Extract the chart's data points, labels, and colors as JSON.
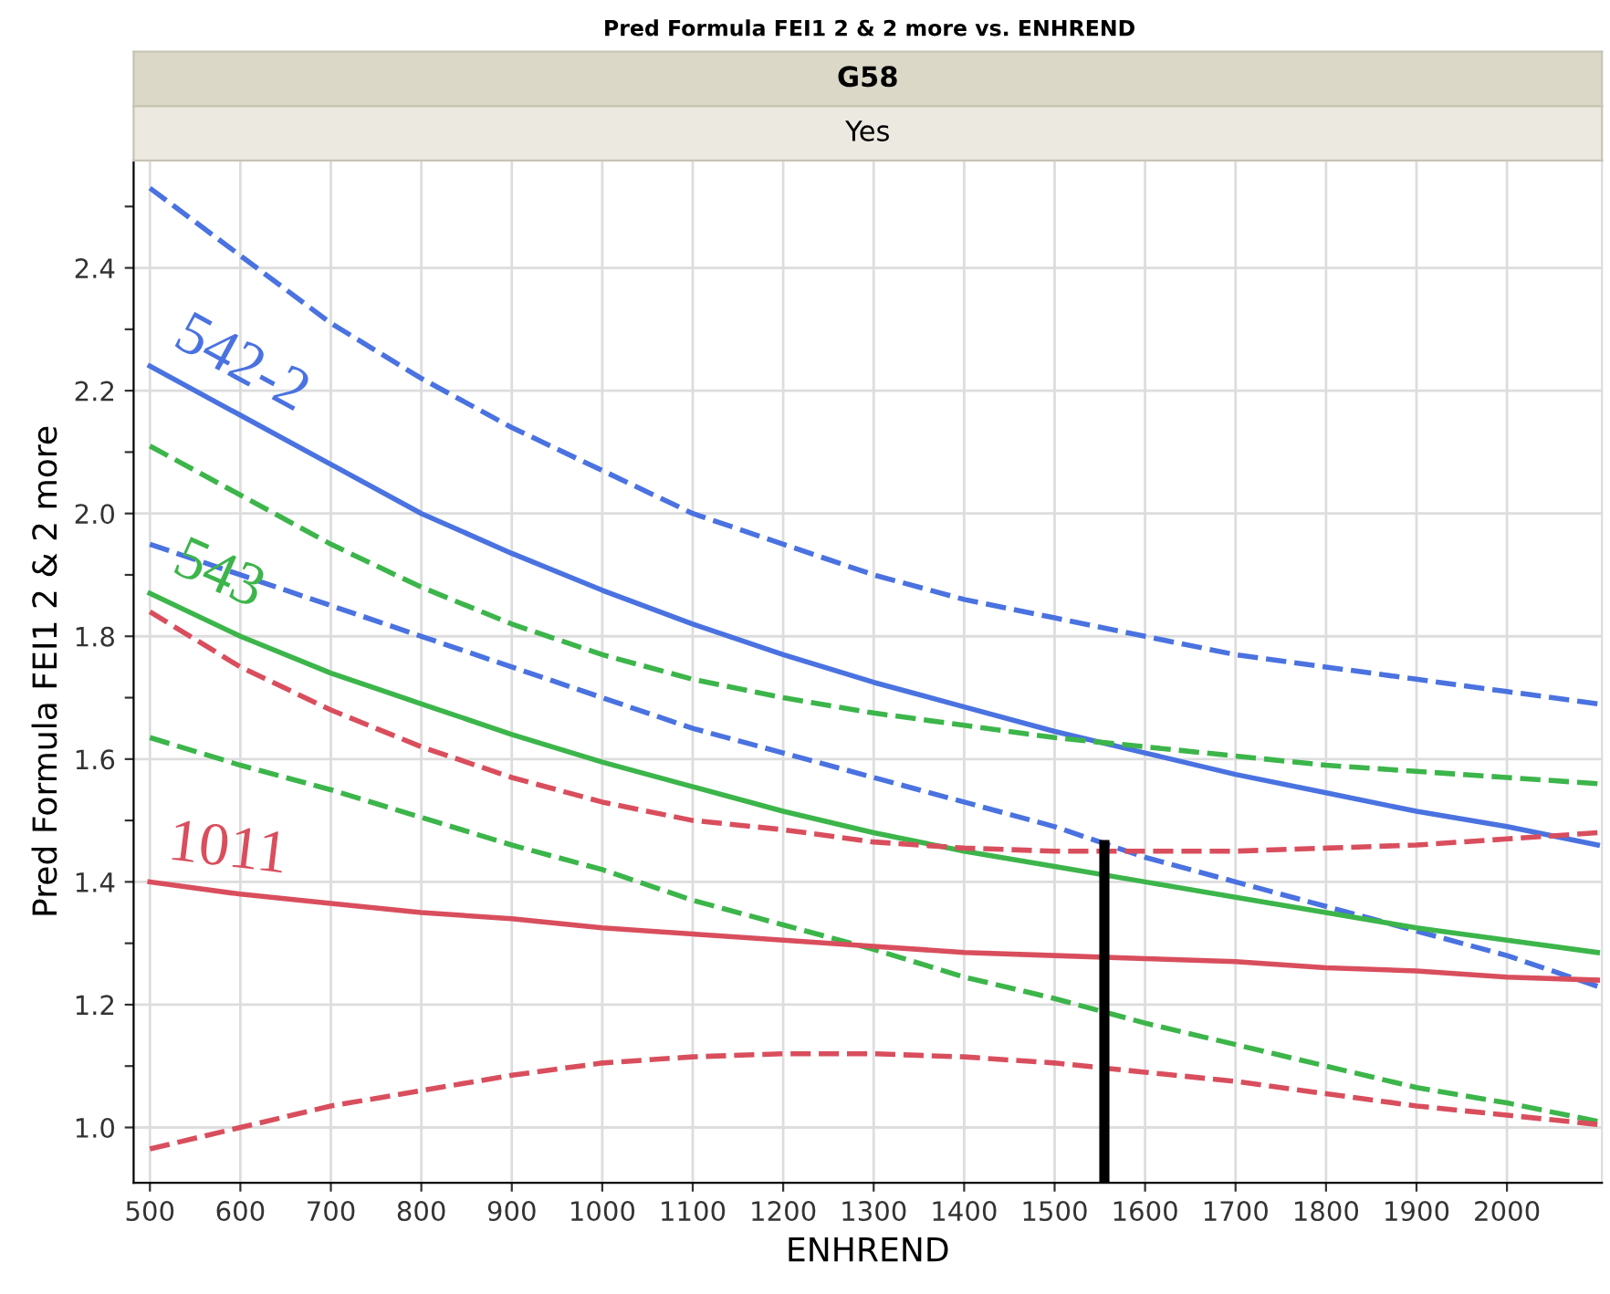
{
  "chart_data": {
    "type": "line",
    "title": "Pred Formula FEI1 2 & 2 more vs. ENHREND",
    "subtitle": "G58",
    "annotations": [
      "Yes"
    ],
    "xlabel": "ENHREND",
    "ylabel": "Pred Formula FEI1 2 & 2 more",
    "x": [
      500,
      600,
      700,
      800,
      900,
      1000,
      1100,
      1200,
      1300,
      1400,
      1500,
      1600,
      1700,
      1800,
      1900,
      2000,
      2100
    ],
    "xlim": [
      482,
      2105
    ],
    "xticks": [
      500,
      600,
      700,
      800,
      900,
      1000,
      1100,
      1200,
      1300,
      1400,
      1500,
      1600,
      1700,
      1800,
      1900,
      2000
    ],
    "ylim": [
      0.91,
      2.575
    ],
    "yticks": [
      {
        "value": 1.0,
        "label": "1.0"
      },
      {
        "value": 1.1,
        "label": null
      },
      {
        "value": 1.2,
        "label": "1.2"
      },
      {
        "value": 1.3,
        "label": null
      },
      {
        "value": 1.4,
        "label": "1.4"
      },
      {
        "value": 1.5,
        "label": null
      },
      {
        "value": 1.6,
        "label": "1.6"
      },
      {
        "value": 1.7,
        "label": null
      },
      {
        "value": 1.8,
        "label": "1.8"
      },
      {
        "value": 1.9,
        "label": null
      },
      {
        "value": 2.0,
        "label": "2.0"
      },
      {
        "value": 2.1,
        "label": null
      },
      {
        "value": 2.2,
        "label": "2.2"
      },
      {
        "value": 2.3,
        "label": null
      },
      {
        "value": 2.4,
        "label": "2.4"
      },
      {
        "value": 2.5,
        "label": null
      }
    ],
    "grid": true,
    "legend": false,
    "series": [
      {
        "name": "542-2",
        "color": "#4a72e0",
        "line_style": "solid",
        "values": [
          2.24,
          2.16,
          2.08,
          2.0,
          1.935,
          1.875,
          1.82,
          1.77,
          1.725,
          1.685,
          1.645,
          1.61,
          1.575,
          1.545,
          1.515,
          1.49,
          1.46
        ]
      },
      {
        "color": "#4a72e0",
        "line_style": "dashed",
        "values": [
          2.53,
          2.42,
          2.31,
          2.22,
          2.14,
          2.07,
          2.0,
          1.95,
          1.9,
          1.86,
          1.83,
          1.8,
          1.77,
          1.75,
          1.73,
          1.71,
          1.69
        ]
      },
      {
        "color": "#4a72e0",
        "line_style": "dashed",
        "values": [
          1.95,
          1.9,
          1.85,
          1.8,
          1.75,
          1.7,
          1.65,
          1.61,
          1.57,
          1.53,
          1.49,
          1.44,
          1.4,
          1.36,
          1.32,
          1.28,
          1.23
        ]
      },
      {
        "name": "543",
        "color": "#3cb54a",
        "line_style": "solid",
        "values": [
          1.87,
          1.8,
          1.74,
          1.69,
          1.64,
          1.595,
          1.555,
          1.515,
          1.48,
          1.45,
          1.425,
          1.4,
          1.375,
          1.35,
          1.325,
          1.305,
          1.285
        ]
      },
      {
        "color": "#3cb54a",
        "line_style": "dashed",
        "values": [
          2.11,
          2.03,
          1.95,
          1.88,
          1.82,
          1.77,
          1.73,
          1.7,
          1.675,
          1.655,
          1.635,
          1.62,
          1.605,
          1.59,
          1.58,
          1.57,
          1.56
        ]
      },
      {
        "color": "#3cb54a",
        "line_style": "dashed",
        "values": [
          1.635,
          1.59,
          1.55,
          1.505,
          1.46,
          1.42,
          1.37,
          1.33,
          1.29,
          1.245,
          1.21,
          1.17,
          1.135,
          1.1,
          1.065,
          1.04,
          1.01
        ]
      },
      {
        "name": "1011",
        "color": "#d94e5d",
        "line_style": "solid",
        "values": [
          1.4,
          1.38,
          1.365,
          1.35,
          1.34,
          1.325,
          1.315,
          1.305,
          1.295,
          1.285,
          1.28,
          1.275,
          1.27,
          1.26,
          1.255,
          1.245,
          1.24
        ]
      },
      {
        "color": "#d94e5d",
        "line_style": "dashed",
        "values": [
          1.84,
          1.75,
          1.68,
          1.62,
          1.57,
          1.53,
          1.5,
          1.485,
          1.465,
          1.455,
          1.45,
          1.45,
          1.45,
          1.455,
          1.46,
          1.47,
          1.48
        ]
      },
      {
        "color": "#d94e5d",
        "line_style": "dashed",
        "values": [
          0.965,
          1.0,
          1.035,
          1.06,
          1.085,
          1.105,
          1.115,
          1.12,
          1.12,
          1.115,
          1.105,
          1.09,
          1.075,
          1.055,
          1.035,
          1.02,
          1.005
        ]
      },
      {
        "color": "#000000",
        "line_style": "solid",
        "x": [
          1555,
          1555
        ],
        "values": [
          0.91,
          1.46
        ]
      }
    ]
  }
}
